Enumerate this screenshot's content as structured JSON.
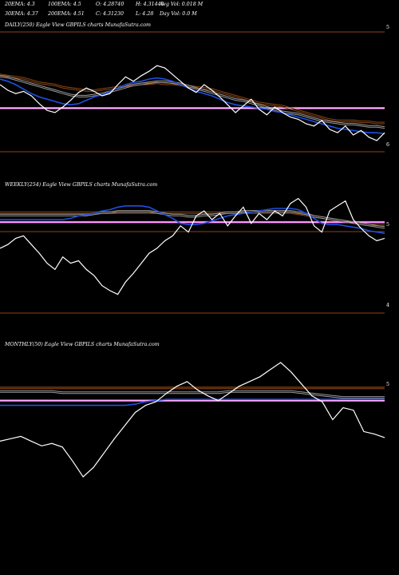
{
  "header": {
    "row1": [
      {
        "id": "ema20",
        "text": "20EMA: 4.3"
      },
      {
        "id": "ema100",
        "text": "100EMA: 4.5"
      },
      {
        "id": "open",
        "text": "O: 4.28740"
      },
      {
        "id": "high",
        "text": "H: 4.31440"
      },
      {
        "id": "avgvol",
        "text": "Avg Vol: 0.018  M"
      }
    ],
    "row2": [
      {
        "id": "ema30",
        "text": "30EMA: 4.37"
      },
      {
        "id": "ema200",
        "text": "200EMA: 4.51"
      },
      {
        "id": "close",
        "text": "C: 4.31230"
      },
      {
        "id": "low",
        "text": "L: 4.28"
      },
      {
        "id": "dayvol",
        "text": "Day Vol: 0.0  M"
      }
    ]
  },
  "colors": {
    "background": "#000000",
    "price": "#ffffff",
    "ma_short": "#1f4fe0",
    "ma_long": "#8b4513",
    "ma_mid": "#9a9a9a",
    "band": "#ff66ff",
    "frame": "#8b4513"
  },
  "chart_data": [
    {
      "type": "line",
      "title": "DAILY(250) Eagle  View  GBPILS charts MunafaSutra.com",
      "yticks": [
        {
          "label": "5",
          "value": 5
        },
        {
          "label": "6",
          "value": 6
        }
      ],
      "series": [
        {
          "role": "price",
          "values": [
            5.55,
            5.5,
            5.47,
            5.49,
            5.45,
            5.38,
            5.32,
            5.3,
            5.35,
            5.41,
            5.48,
            5.52,
            5.49,
            5.45,
            5.47,
            5.55,
            5.62,
            5.58,
            5.63,
            5.67,
            5.72,
            5.7,
            5.64,
            5.58,
            5.52,
            5.48,
            5.55,
            5.5,
            5.44,
            5.37,
            5.3,
            5.36,
            5.42,
            5.33,
            5.28,
            5.35,
            5.3,
            5.26,
            5.24,
            5.2,
            5.18,
            5.23,
            5.15,
            5.12,
            5.18,
            5.1,
            5.14,
            5.08,
            5.05,
            5.12
          ]
        },
        {
          "role": "ma_short",
          "values": [
            5.6,
            5.58,
            5.55,
            5.51,
            5.47,
            5.44,
            5.42,
            5.4,
            5.38,
            5.37,
            5.38,
            5.41,
            5.44,
            5.46,
            5.49,
            5.52,
            5.55,
            5.57,
            5.58,
            5.6,
            5.61,
            5.6,
            5.58,
            5.55,
            5.52,
            5.49,
            5.47,
            5.45,
            5.42,
            5.39,
            5.37,
            5.36,
            5.35,
            5.34,
            5.33,
            5.31,
            5.3,
            5.28,
            5.26,
            5.24,
            5.22,
            5.2,
            5.18,
            5.16,
            5.15,
            5.14,
            5.13,
            5.12,
            5.12,
            5.11
          ]
        },
        {
          "role": "ma_mid",
          "values": [
            5.62,
            5.61,
            5.59,
            5.57,
            5.55,
            5.53,
            5.51,
            5.49,
            5.47,
            5.45,
            5.44,
            5.44,
            5.45,
            5.46,
            5.48,
            5.5,
            5.52,
            5.54,
            5.55,
            5.56,
            5.57,
            5.57,
            5.56,
            5.55,
            5.53,
            5.51,
            5.49,
            5.47,
            5.45,
            5.43,
            5.41,
            5.4,
            5.38,
            5.36,
            5.34,
            5.32,
            5.3,
            5.29,
            5.28,
            5.26,
            5.24,
            5.22,
            5.21,
            5.2,
            5.19,
            5.19,
            5.18,
            5.17,
            5.17,
            5.16
          ]
        },
        {
          "role": "ma_long",
          "values": [
            5.63,
            5.62,
            5.61,
            5.6,
            5.58,
            5.56,
            5.55,
            5.54,
            5.52,
            5.51,
            5.5,
            5.49,
            5.49,
            5.5,
            5.51,
            5.52,
            5.53,
            5.54,
            5.55,
            5.55,
            5.56,
            5.55,
            5.55,
            5.54,
            5.53,
            5.52,
            5.51,
            5.5,
            5.48,
            5.46,
            5.44,
            5.42,
            5.4,
            5.38,
            5.37,
            5.36,
            5.35,
            5.33,
            5.31,
            5.29,
            5.27,
            5.25,
            5.23,
            5.22,
            5.22,
            5.22,
            5.21,
            5.21,
            5.2,
            5.2
          ]
        }
      ],
      "hlines": [
        {
          "role": "band",
          "value": 5.34
        }
      ]
    },
    {
      "type": "line",
      "title": "WEEKLY(254) Eagle  View  GBPILS charts MunafaSutra.com",
      "yticks": [
        {
          "label": "5",
          "value": 5
        },
        {
          "label": "4",
          "value": 4
        }
      ],
      "series": [
        {
          "role": "price",
          "values": [
            4.52,
            4.55,
            4.6,
            4.62,
            4.55,
            4.48,
            4.4,
            4.35,
            4.45,
            4.4,
            4.42,
            4.35,
            4.3,
            4.22,
            4.18,
            4.15,
            4.25,
            4.32,
            4.4,
            4.48,
            4.52,
            4.58,
            4.62,
            4.7,
            4.65,
            4.78,
            4.82,
            4.75,
            4.8,
            4.7,
            4.78,
            4.85,
            4.72,
            4.8,
            4.75,
            4.82,
            4.78,
            4.88,
            4.92,
            4.85,
            4.7,
            4.65,
            4.82,
            4.86,
            4.9,
            4.75,
            4.68,
            4.62,
            4.58,
            4.6
          ]
        },
        {
          "role": "ma_short",
          "values": [
            4.75,
            4.75,
            4.75,
            4.75,
            4.75,
            4.75,
            4.75,
            4.75,
            4.75,
            4.76,
            4.78,
            4.79,
            4.8,
            4.82,
            4.83,
            4.85,
            4.86,
            4.86,
            4.86,
            4.85,
            4.82,
            4.79,
            4.76,
            4.72,
            4.71,
            4.71,
            4.72,
            4.74,
            4.76,
            4.78,
            4.79,
            4.8,
            4.81,
            4.82,
            4.83,
            4.84,
            4.84,
            4.84,
            4.83,
            4.8,
            4.76,
            4.72,
            4.71,
            4.71,
            4.7,
            4.69,
            4.68,
            4.66,
            4.65,
            4.64
          ]
        },
        {
          "role": "ma_mid",
          "values": [
            4.78,
            4.78,
            4.78,
            4.78,
            4.78,
            4.78,
            4.78,
            4.78,
            4.78,
            4.78,
            4.78,
            4.78,
            4.79,
            4.8,
            4.8,
            4.81,
            4.81,
            4.81,
            4.81,
            4.81,
            4.8,
            4.79,
            4.78,
            4.78,
            4.77,
            4.77,
            4.78,
            4.78,
            4.79,
            4.8,
            4.8,
            4.81,
            4.81,
            4.81,
            4.81,
            4.81,
            4.81,
            4.81,
            4.8,
            4.79,
            4.77,
            4.76,
            4.75,
            4.74,
            4.73,
            4.72,
            4.71,
            4.7,
            4.69,
            4.68
          ]
        },
        {
          "role": "ma_long",
          "values": [
            4.8,
            4.8,
            4.8,
            4.8,
            4.8,
            4.8,
            4.8,
            4.8,
            4.8,
            4.8,
            4.8,
            4.8,
            4.8,
            4.8,
            4.8,
            4.8,
            4.8,
            4.8,
            4.8,
            4.8,
            4.8,
            4.8,
            4.8,
            4.8,
            4.8,
            4.8,
            4.8,
            4.8,
            4.8,
            4.8,
            4.8,
            4.8,
            4.8,
            4.8,
            4.8,
            4.8,
            4.8,
            4.8,
            4.79,
            4.78,
            4.77,
            4.76,
            4.75,
            4.74,
            4.73,
            4.72,
            4.71,
            4.7,
            4.7,
            4.7
          ]
        }
      ],
      "hlines": [
        {
          "role": "band",
          "value": 4.73
        }
      ]
    },
    {
      "type": "line",
      "title": "MONTHLY(50) Eagle  View  GBPILS charts MunafaSutra.com",
      "yticks": [
        {
          "label": "5",
          "value": 5
        }
      ],
      "series": [
        {
          "role": "price",
          "values": [
            4.22,
            4.24,
            4.26,
            4.22,
            4.18,
            4.2,
            4.17,
            4.05,
            3.92,
            4.0,
            4.12,
            4.24,
            4.35,
            4.46,
            4.52,
            4.55,
            4.62,
            4.68,
            4.72,
            4.65,
            4.6,
            4.56,
            4.62,
            4.68,
            4.72,
            4.76,
            4.82,
            4.88,
            4.8,
            4.7,
            4.6,
            4.55,
            4.4,
            4.5,
            4.48,
            4.3,
            4.28,
            4.25
          ]
        },
        {
          "role": "ma_short",
          "values": [
            4.52,
            4.52,
            4.52,
            4.52,
            4.52,
            4.52,
            4.52,
            4.52,
            4.52,
            4.52,
            4.52,
            4.52,
            4.52,
            4.53,
            4.55,
            4.56,
            4.57,
            4.57,
            4.57,
            4.57,
            4.57,
            4.57,
            4.57,
            4.57,
            4.57,
            4.57,
            4.57,
            4.57,
            4.57,
            4.57,
            4.57,
            4.57,
            4.57,
            4.57,
            4.57,
            4.57,
            4.57,
            4.57
          ]
        },
        {
          "role": "ma_mid",
          "values": [
            4.63,
            4.63,
            4.63,
            4.63,
            4.63,
            4.63,
            4.62,
            4.62,
            4.62,
            4.62,
            4.62,
            4.62,
            4.62,
            4.62,
            4.62,
            4.62,
            4.62,
            4.62,
            4.62,
            4.62,
            4.62,
            4.62,
            4.63,
            4.63,
            4.63,
            4.63,
            4.63,
            4.63,
            4.63,
            4.62,
            4.61,
            4.6,
            4.59,
            4.58,
            4.58,
            4.58,
            4.58,
            4.58
          ]
        },
        {
          "role": "ma_long",
          "values": [
            4.66,
            4.66,
            4.66,
            4.66,
            4.66,
            4.66,
            4.66,
            4.66,
            4.66,
            4.66,
            4.66,
            4.66,
            4.66,
            4.66,
            4.66,
            4.66,
            4.66,
            4.66,
            4.66,
            4.66,
            4.66,
            4.66,
            4.66,
            4.66,
            4.66,
            4.66,
            4.66,
            4.66,
            4.66,
            4.66,
            4.66,
            4.66,
            4.66,
            4.66,
            4.66,
            4.66,
            4.66,
            4.66
          ]
        }
      ],
      "hlines": [
        {
          "role": "band",
          "value": 4.56
        }
      ]
    }
  ]
}
